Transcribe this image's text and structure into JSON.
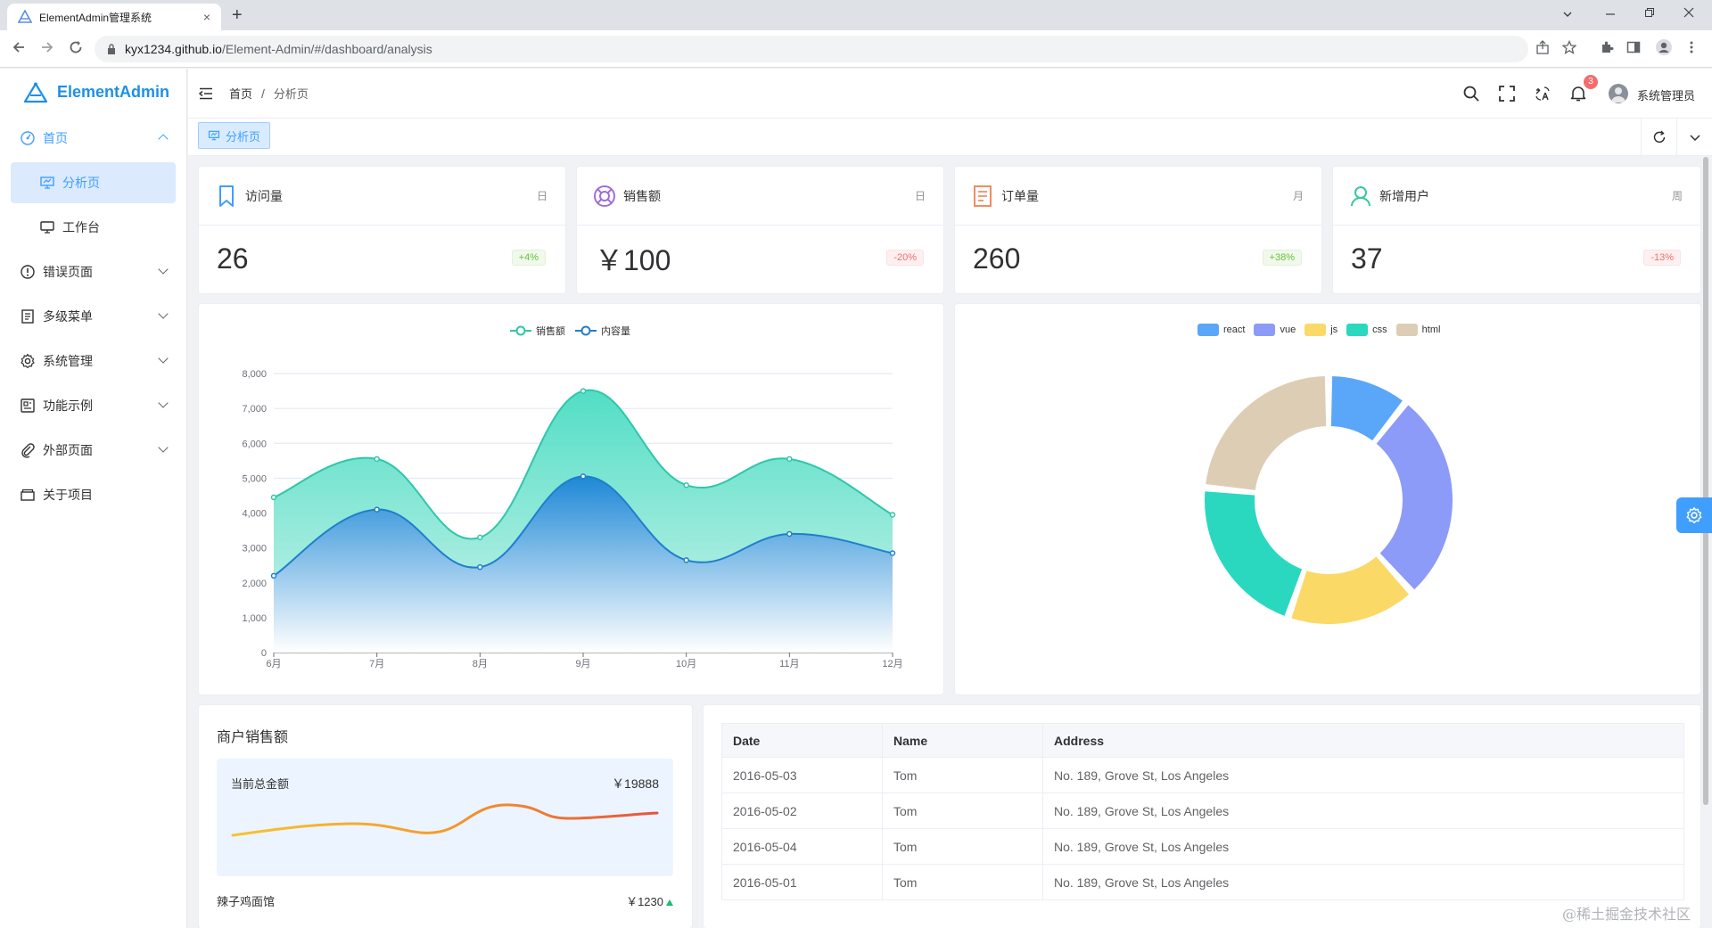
{
  "browser": {
    "tab_title": "ElementAdmin管理系统",
    "tab_close": "×",
    "new_tab": "+",
    "url_host": "kyx1234.github.io",
    "url_path": "/Element-Admin/#/dashboard/analysis"
  },
  "sidebar": {
    "logo_text": "ElementAdmin",
    "home": "首页",
    "analysis": "分析页",
    "workbench": "工作台",
    "error_pages": "错误页面",
    "multi_menu": "多级菜单",
    "system": "系统管理",
    "examples": "功能示例",
    "external": "外部页面",
    "about": "关于项目"
  },
  "header": {
    "breadcrumb_home": "首页",
    "breadcrumb_sep": "/",
    "breadcrumb_current": "分析页",
    "notification_count": "3",
    "username": "系统管理员"
  },
  "tags": {
    "active": "分析页"
  },
  "stats": [
    {
      "title": "访问量",
      "period": "日",
      "value": "26",
      "change": "+4%",
      "trend": "up",
      "color": "#409eff"
    },
    {
      "title": "销售额",
      "period": "日",
      "value": "￥100",
      "change": "-20%",
      "trend": "down",
      "color": "#9f6fd6"
    },
    {
      "title": "订单量",
      "period": "月",
      "value": "260",
      "change": "+38%",
      "trend": "up",
      "color": "#f08d62"
    },
    {
      "title": "新增用户",
      "period": "周",
      "value": "37",
      "change": "-13%",
      "trend": "down",
      "color": "#36c6a3"
    }
  ],
  "chart_data": [
    {
      "type": "area",
      "categories": [
        "6月",
        "7月",
        "8月",
        "9月",
        "10月",
        "11月",
        "12月"
      ],
      "series": [
        {
          "name": "销售额",
          "values": [
            4450,
            5550,
            3300,
            7500,
            4800,
            5550,
            3950
          ],
          "color": "#2ec7a8"
        },
        {
          "name": "内容量",
          "values": [
            2200,
            4100,
            2450,
            5050,
            2650,
            3400,
            2850
          ],
          "color": "#1f7fcc"
        }
      ],
      "ylim": [
        0,
        8000
      ],
      "yticks": [
        "0",
        "1,000",
        "2,000",
        "3,000",
        "4,000",
        "5,000",
        "6,000",
        "7,000",
        "8,000"
      ],
      "legend": "top-center",
      "grid": true
    },
    {
      "type": "pie",
      "variant": "donut",
      "categories": [
        "react",
        "vue",
        "js",
        "css",
        "html"
      ],
      "values": [
        10,
        26,
        16,
        20,
        22
      ],
      "colors": [
        "#5aa6f9",
        "#8c9bf8",
        "#fbd967",
        "#2ad8c0",
        "#ddcdb4"
      ],
      "legend": "top-center"
    }
  ],
  "merchant": {
    "title": "商户销售额",
    "total_label": "当前总金额",
    "total_value": "￥19888",
    "row_name": "辣子鸡面馆",
    "row_value": "￥1230"
  },
  "table": {
    "headers": [
      "Date",
      "Name",
      "Address"
    ],
    "rows": [
      [
        "2016-05-03",
        "Tom",
        "No. 189, Grove St, Los Angeles"
      ],
      [
        "2016-05-02",
        "Tom",
        "No. 189, Grove St, Los Angeles"
      ],
      [
        "2016-05-04",
        "Tom",
        "No. 189, Grove St, Los Angeles"
      ],
      [
        "2016-05-01",
        "Tom",
        "No. 189, Grove St, Los Angeles"
      ]
    ]
  },
  "watermark": "@稀土掘金技术社区"
}
